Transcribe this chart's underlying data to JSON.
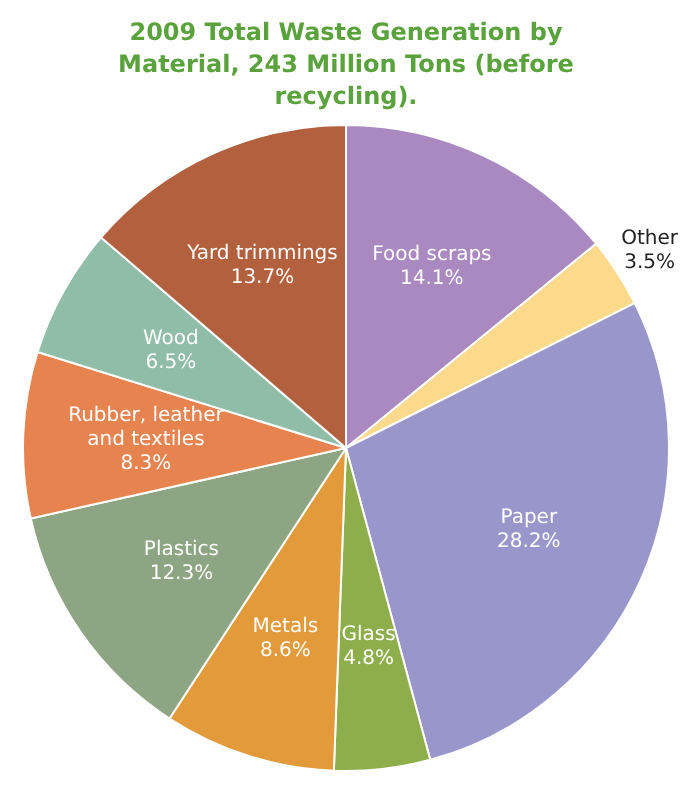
{
  "chart_data": {
    "type": "pie",
    "title": "2009 Total Waste Generation by Material, 243 Million Tons (before recycling).",
    "categories": [
      "Food scraps",
      "Other",
      "Paper",
      "Glass",
      "Metals",
      "Plastics",
      "Rubber, leather and textiles",
      "Wood",
      "Yard trimmings"
    ],
    "values": [
      14.1,
      3.5,
      28.2,
      4.8,
      8.6,
      12.3,
      8.3,
      6.5,
      13.7
    ],
    "colors": [
      "#a989c0",
      "#fdd98c",
      "#9896cb",
      "#8dae4b",
      "#e29a3b",
      "#8ea583",
      "#e6834f",
      "#90bda8",
      "#b3603f"
    ],
    "value_labels": [
      "14.1%",
      "3.5%",
      "28.2%",
      "4.8%",
      "8.6%",
      "12.3%",
      "8.3%",
      "6.5%",
      "13.7%"
    ],
    "legend": false
  }
}
